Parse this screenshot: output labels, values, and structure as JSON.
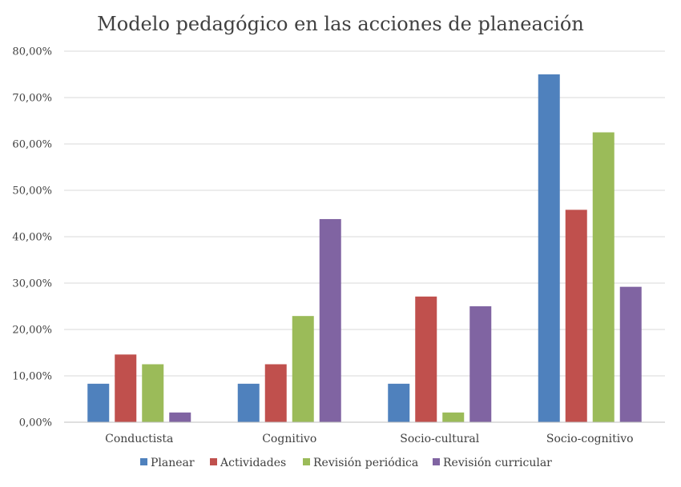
{
  "chart_data": {
    "type": "bar",
    "title": "Modelo pedagógico en las acciones de planeación",
    "categories": [
      "Conductista",
      "Cognitivo",
      "Socio-cultural",
      "Socio-cognitivo"
    ],
    "series": [
      {
        "name": "Planear",
        "color": "#4f81bd",
        "values": [
          8.3,
          8.3,
          8.3,
          75.0
        ]
      },
      {
        "name": "Actividades",
        "color": "#c0504d",
        "values": [
          14.6,
          12.5,
          27.1,
          45.8
        ]
      },
      {
        "name": "Revisión periódica",
        "color": "#9bbb59",
        "values": [
          12.5,
          22.9,
          2.1,
          62.5
        ]
      },
      {
        "name": "Revisión curricular",
        "color": "#8064a2",
        "values": [
          2.1,
          43.8,
          25.0,
          29.2
        ]
      }
    ],
    "ylim": [
      0,
      80
    ],
    "yticks": [
      "0,00%",
      "10,00%",
      "20,00%",
      "30,00%",
      "40,00%",
      "50,00%",
      "60,00%",
      "70,00%",
      "80,00%"
    ],
    "grid": true,
    "legend_position": "bottom"
  }
}
